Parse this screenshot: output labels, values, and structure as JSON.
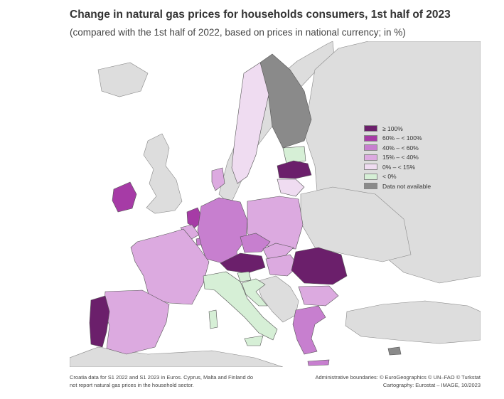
{
  "header": {
    "title": "Change in natural gas prices for households consumers, 1st half of 2023",
    "subtitle": "(compared with the 1st half of 2022, based on prices in national currency; in %)"
  },
  "legend": {
    "items": [
      {
        "label": "≥ 100%",
        "color": "#6b1f6b"
      },
      {
        "label": "60% – < 100%",
        "color": "#a63ba6"
      },
      {
        "label": "40% – < 60%",
        "color": "#c77fcf"
      },
      {
        "label": "15% – < 40%",
        "color": "#dcaae0"
      },
      {
        "label": "0% – < 15%",
        "color": "#efdcf1"
      },
      {
        "label": "< 0%",
        "color": "#d6efd6"
      },
      {
        "label": "Data not available",
        "color": "#8a8a8a"
      }
    ]
  },
  "colors": {
    "sea": "#ffffff",
    "non_eu_land": "#dddddd",
    "borders": "#555555"
  },
  "countries": [
    {
      "name": "Portugal",
      "category": "≥ 100%"
    },
    {
      "name": "Ireland",
      "category": "60% – < 100%"
    },
    {
      "name": "Netherlands",
      "category": "60% – < 100%"
    },
    {
      "name": "Latvia",
      "category": "≥ 100%"
    },
    {
      "name": "Austria",
      "category": "≥ 100%"
    },
    {
      "name": "Romania",
      "category": "≥ 100%"
    },
    {
      "name": "Germany",
      "category": "40% – < 60%"
    },
    {
      "name": "Czechia",
      "category": "40% – < 60%"
    },
    {
      "name": "Luxembourg",
      "category": "40% – < 60%"
    },
    {
      "name": "Greece",
      "category": "40% – < 60%"
    },
    {
      "name": "France",
      "category": "15% – < 40%"
    },
    {
      "name": "Spain",
      "category": "15% – < 40%"
    },
    {
      "name": "Poland",
      "category": "15% – < 40%"
    },
    {
      "name": "Belgium",
      "category": "15% – < 40%"
    },
    {
      "name": "Denmark",
      "category": "15% – < 40%"
    },
    {
      "name": "Slovakia",
      "category": "15% – < 40%"
    },
    {
      "name": "Hungary",
      "category": "15% – < 40%"
    },
    {
      "name": "Bulgaria",
      "category": "15% – < 40%"
    },
    {
      "name": "Sweden",
      "category": "0% – < 15%"
    },
    {
      "name": "Lithuania",
      "category": "0% – < 15%"
    },
    {
      "name": "Italy",
      "category": "< 0%"
    },
    {
      "name": "Estonia",
      "category": "< 0%"
    },
    {
      "name": "Slovenia",
      "category": "< 0%"
    },
    {
      "name": "Croatia",
      "category": "< 0%"
    },
    {
      "name": "Finland",
      "category": "Data not available"
    }
  ],
  "footnotes": {
    "left_line1": "Croatia data for S1 2022 and S1 2023 in Euros. Cyprus, Malta and Finland do",
    "left_line2": "not report natural gas prices in the household sector.",
    "right_line1": "Administrative boundaries: © EuroGeographics © UN–FAO © Turkstat",
    "right_line2": "Cartography: Eurostat – IMAGE, 10/2023"
  }
}
